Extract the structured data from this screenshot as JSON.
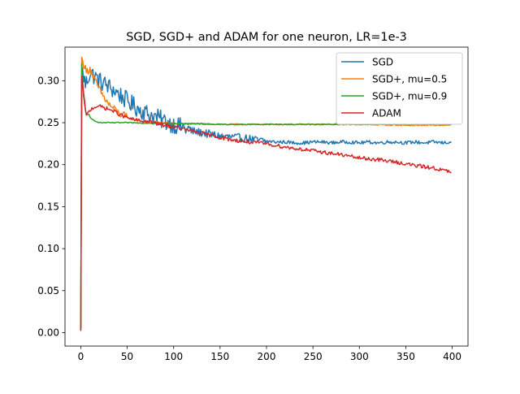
{
  "chart_data": {
    "type": "line",
    "title": "SGD, SGD+ and ADAM for one neuron, LR=1e-3",
    "xlabel": "",
    "ylabel": "",
    "xlim": [
      -17,
      417
    ],
    "ylim": [
      -0.016,
      0.34
    ],
    "xticks": [
      0,
      50,
      100,
      150,
      200,
      250,
      300,
      350,
      400
    ],
    "xtick_labels": [
      "0",
      "50",
      "100",
      "150",
      "200",
      "250",
      "300",
      "350",
      "400"
    ],
    "yticks": [
      0.0,
      0.05,
      0.1,
      0.15,
      0.2,
      0.25,
      0.3
    ],
    "ytick_labels": [
      "0.00",
      "0.05",
      "0.10",
      "0.15",
      "0.20",
      "0.25",
      "0.30"
    ],
    "grid": false,
    "legend_position": "top-right",
    "series": [
      {
        "name": "SGD",
        "color": "#1f77b4",
        "x": [
          0,
          1,
          2,
          5,
          10,
          15,
          20,
          30,
          40,
          50,
          60,
          70,
          80,
          90,
          100,
          110,
          120,
          130,
          140,
          150,
          160,
          170,
          180,
          190,
          200,
          210,
          220,
          230,
          240,
          250,
          260,
          270,
          280,
          290,
          300,
          310,
          320,
          330,
          340,
          350,
          360,
          370,
          380,
          390,
          399
        ],
        "y": [
          0.005,
          0.3,
          0.31,
          0.295,
          0.31,
          0.305,
          0.3,
          0.293,
          0.285,
          0.276,
          0.268,
          0.262,
          0.257,
          0.252,
          0.248,
          0.244,
          0.24,
          0.238,
          0.236,
          0.234,
          0.233,
          0.232,
          0.231,
          0.229,
          0.228,
          0.227,
          0.227,
          0.226,
          0.226,
          0.227,
          0.227,
          0.226,
          0.227,
          0.227,
          0.226,
          0.227,
          0.226,
          0.227,
          0.227,
          0.226,
          0.227,
          0.226,
          0.227,
          0.226,
          0.227
        ]
      },
      {
        "name": "SGD+, mu=0.5",
        "color": "#ff7f0e",
        "x": [
          0,
          1,
          2,
          4,
          6,
          10,
          15,
          20,
          25,
          30,
          40,
          50,
          60,
          70,
          80,
          90,
          100,
          120,
          150,
          200,
          250,
          300,
          350,
          399
        ],
        "y": [
          0.003,
          0.328,
          0.322,
          0.318,
          0.31,
          0.315,
          0.3,
          0.29,
          0.28,
          0.272,
          0.262,
          0.256,
          0.253,
          0.251,
          0.25,
          0.25,
          0.249,
          0.249,
          0.248,
          0.248,
          0.248,
          0.248,
          0.247,
          0.247
        ]
      },
      {
        "name": "SGD+, mu=0.9",
        "color": "#2ca02c",
        "x": [
          0,
          1,
          2,
          3,
          5,
          8,
          12,
          16,
          20,
          30,
          50,
          100,
          150,
          200,
          250,
          300,
          350,
          399
        ],
        "y": [
          0.005,
          0.32,
          0.3,
          0.28,
          0.265,
          0.258,
          0.254,
          0.252,
          0.25,
          0.25,
          0.25,
          0.249,
          0.248,
          0.248,
          0.248,
          0.248,
          0.248,
          0.248
        ]
      },
      {
        "name": "ADAM",
        "color": "#d62728",
        "x": [
          0,
          1,
          2,
          4,
          6,
          8,
          12,
          18,
          25,
          35,
          45,
          55,
          65,
          75,
          85,
          95,
          105,
          120,
          140,
          160,
          180,
          200,
          220,
          240,
          260,
          280,
          300,
          320,
          340,
          360,
          380,
          399
        ],
        "y": [
          0.002,
          0.305,
          0.295,
          0.275,
          0.258,
          0.262,
          0.267,
          0.27,
          0.268,
          0.264,
          0.258,
          0.254,
          0.252,
          0.251,
          0.248,
          0.246,
          0.244,
          0.24,
          0.235,
          0.23,
          0.227,
          0.225,
          0.221,
          0.218,
          0.215,
          0.212,
          0.208,
          0.206,
          0.203,
          0.199,
          0.196,
          0.191
        ]
      }
    ]
  }
}
